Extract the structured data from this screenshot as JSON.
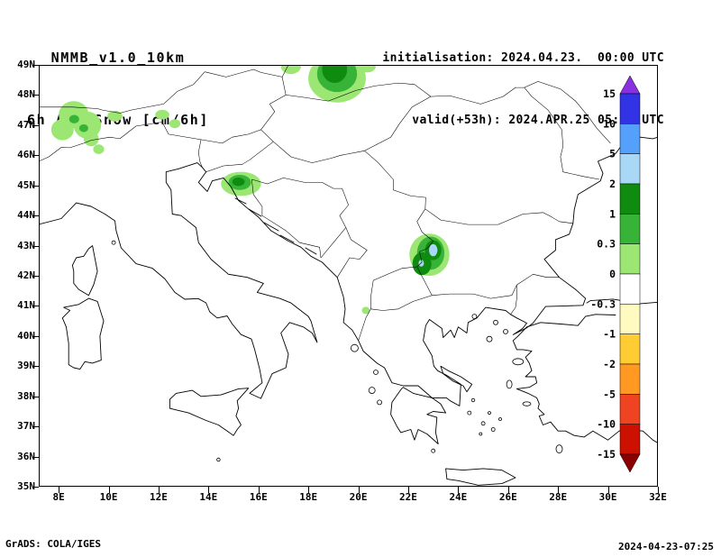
{
  "header": {
    "model": "NMMB_v1.0_10km",
    "field": "6h Acc.Snow [cm/6h]",
    "init": "initialisation: 2024.04.23.  00:00 UTC",
    "valid": "valid(+53h): 2024.APR.25 05:00 UTC"
  },
  "footer": {
    "credit": "GrADS: COLA/IGES",
    "timestamp": "2024-04-23-07:25"
  },
  "map": {
    "lon_range": [
      7.2,
      32
    ],
    "lat_range": [
      35,
      49
    ],
    "lat_labels": [
      "49N",
      "48N",
      "47N",
      "46N",
      "45N",
      "44N",
      "43N",
      "42N",
      "41N",
      "40N",
      "39N",
      "38N",
      "37N",
      "36N",
      "35N"
    ],
    "lon_labels": [
      "8E",
      "10E",
      "12E",
      "14E",
      "16E",
      "18E",
      "20E",
      "22E",
      "24E",
      "26E",
      "28E",
      "30E",
      "32E"
    ],
    "snow_patches": [
      {
        "lon": 8.6,
        "lat": 47.35,
        "rx": 0.6,
        "ry": 0.45,
        "c": "lightgreen"
      },
      {
        "lon": 8.15,
        "lat": 46.85,
        "rx": 0.45,
        "ry": 0.35,
        "c": "lightgreen"
      },
      {
        "lon": 9.15,
        "lat": 47.0,
        "rx": 0.55,
        "ry": 0.45,
        "c": "lightgreen"
      },
      {
        "lon": 9.3,
        "lat": 46.55,
        "rx": 0.3,
        "ry": 0.25,
        "c": "lightgreen"
      },
      {
        "lon": 9.6,
        "lat": 46.2,
        "rx": 0.22,
        "ry": 0.16,
        "c": "lightgreen"
      },
      {
        "lon": 10.25,
        "lat": 47.3,
        "rx": 0.3,
        "ry": 0.18,
        "c": "lightgreen"
      },
      {
        "lon": 12.15,
        "lat": 47.35,
        "rx": 0.28,
        "ry": 0.16,
        "c": "lightgreen"
      },
      {
        "lon": 12.65,
        "lat": 47.05,
        "rx": 0.22,
        "ry": 0.15,
        "c": "lightgreen"
      },
      {
        "lon": 8.62,
        "lat": 47.2,
        "rx": 0.2,
        "ry": 0.14,
        "c": "green"
      },
      {
        "lon": 9.0,
        "lat": 46.9,
        "rx": 0.18,
        "ry": 0.13,
        "c": "green"
      },
      {
        "lon": 17.3,
        "lat": 48.95,
        "rx": 0.4,
        "ry": 0.25,
        "c": "lightgreen"
      },
      {
        "lon": 19.15,
        "lat": 48.55,
        "rx": 1.15,
        "ry": 0.8,
        "c": "lightgreen"
      },
      {
        "lon": 20.35,
        "lat": 48.95,
        "rx": 0.35,
        "ry": 0.2,
        "c": "lightgreen"
      },
      {
        "lon": 19.15,
        "lat": 48.7,
        "rx": 0.8,
        "ry": 0.6,
        "c": "green"
      },
      {
        "lon": 19.05,
        "lat": 48.85,
        "rx": 0.5,
        "ry": 0.45,
        "c": "darkgreen"
      },
      {
        "lon": 15.3,
        "lat": 45.05,
        "rx": 0.8,
        "ry": 0.4,
        "c": "lightgreen"
      },
      {
        "lon": 15.25,
        "lat": 45.1,
        "rx": 0.45,
        "ry": 0.25,
        "c": "green"
      },
      {
        "lon": 15.2,
        "lat": 45.12,
        "rx": 0.25,
        "ry": 0.14,
        "c": "darkgreen"
      },
      {
        "lon": 22.85,
        "lat": 42.7,
        "rx": 0.8,
        "ry": 0.7,
        "c": "lightgreen"
      },
      {
        "lon": 22.9,
        "lat": 42.75,
        "rx": 0.55,
        "ry": 0.55,
        "c": "green"
      },
      {
        "lon": 23.0,
        "lat": 42.85,
        "rx": 0.33,
        "ry": 0.33,
        "c": "darkgreen"
      },
      {
        "lon": 22.55,
        "lat": 42.4,
        "rx": 0.38,
        "ry": 0.38,
        "c": "darkgreen"
      },
      {
        "lon": 23.0,
        "lat": 42.85,
        "rx": 0.17,
        "ry": 0.2,
        "c": "lightblue"
      },
      {
        "lon": 22.52,
        "lat": 42.42,
        "rx": 0.11,
        "ry": 0.11,
        "c": "lightblue"
      },
      {
        "lon": 20.3,
        "lat": 40.85,
        "rx": 0.16,
        "ry": 0.12,
        "c": "lightgreen"
      }
    ]
  },
  "colorbar": {
    "levels": [
      "15",
      "10",
      "5",
      "2",
      "1",
      "0.3",
      "0",
      "-0.3",
      "-1",
      "-2",
      "-5",
      "-10",
      "-15"
    ],
    "band_colors": [
      "#8b30e0",
      "#3333e6",
      "#55a0fa",
      "#a8d8f5",
      "#0f8c0f",
      "#37b437",
      "#9ce673",
      "#ffffff",
      "#fffbc0",
      "#ffcc33",
      "#ff9922",
      "#ee4422",
      "#cc1100",
      "#8b0000"
    ],
    "palette": {
      "lightgreen": "#9ce673",
      "green": "#37b437",
      "darkgreen": "#0f8c0f",
      "lightblue": "#a8d8f5"
    }
  }
}
